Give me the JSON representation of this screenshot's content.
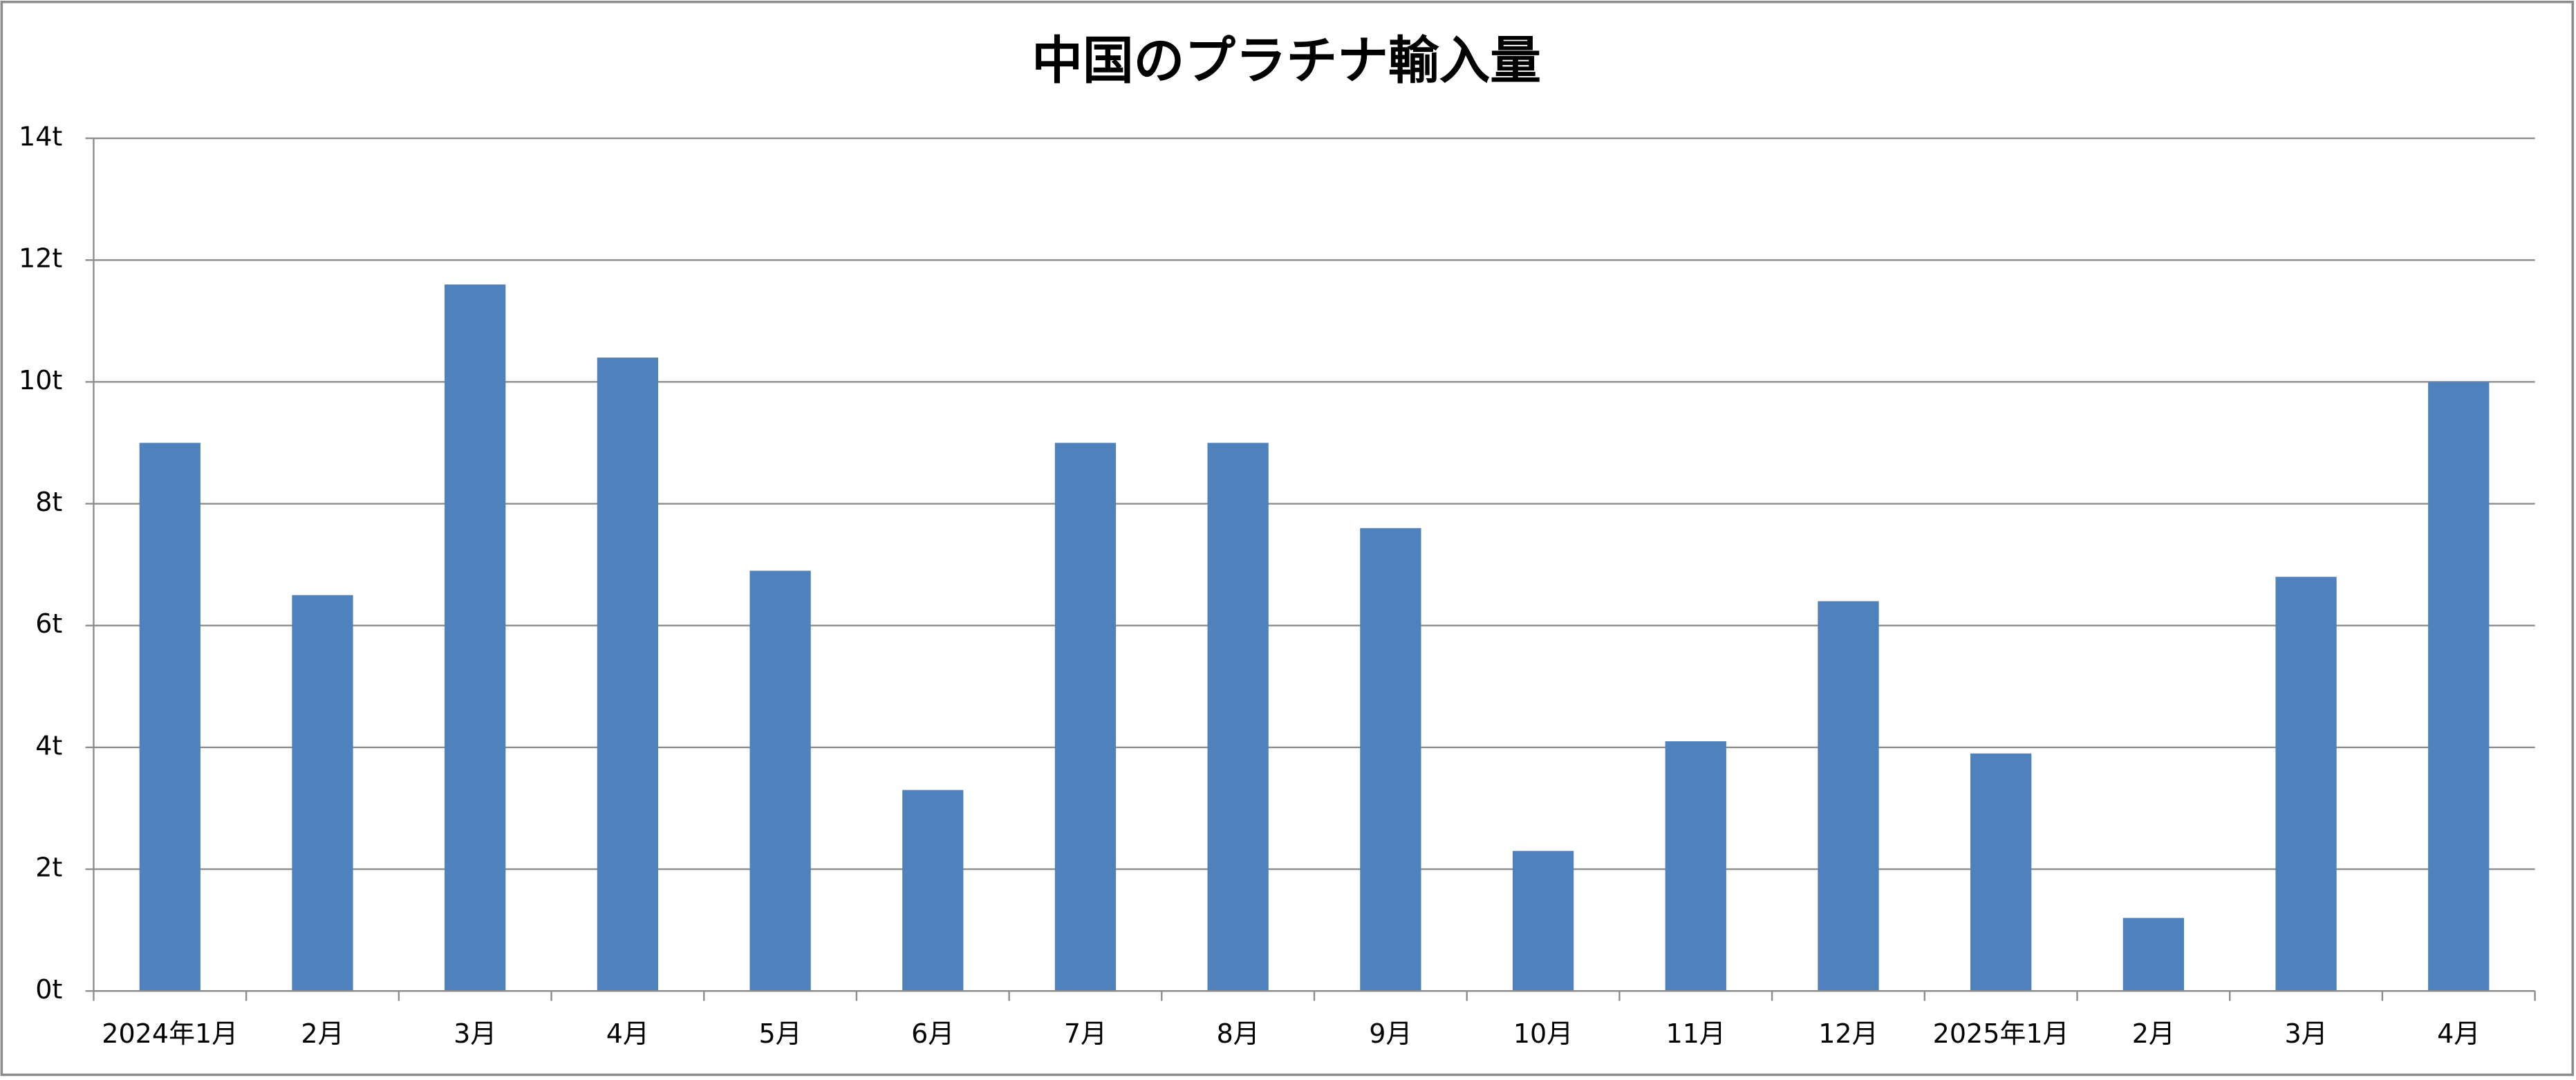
{
  "chart_data": {
    "type": "bar",
    "title": "中国のプラチナ輸入量",
    "categories": [
      "2024年1月",
      "2月",
      "3月",
      "4月",
      "5月",
      "6月",
      "7月",
      "8月",
      "9月",
      "10月",
      "11月",
      "12月",
      "2025年1月",
      "2月",
      "3月",
      "4月"
    ],
    "values": [
      9,
      6.5,
      11.6,
      10.4,
      6.9,
      3.3,
      9,
      9,
      7.6,
      2.3,
      4.1,
      6.4,
      3.9,
      1.2,
      6.8,
      10
    ],
    "color": "#4f81bd",
    "ylim": [
      0,
      14
    ],
    "yticks": [
      {
        "value": 0,
        "label": "0t"
      },
      {
        "value": 2,
        "label": "2t"
      },
      {
        "value": 4,
        "label": "4t"
      },
      {
        "value": 6,
        "label": "6t"
      },
      {
        "value": 8,
        "label": "8t"
      },
      {
        "value": 10,
        "label": "10t"
      },
      {
        "value": 12,
        "label": "12t"
      },
      {
        "value": 14,
        "label": "14t"
      }
    ],
    "grid": true
  }
}
